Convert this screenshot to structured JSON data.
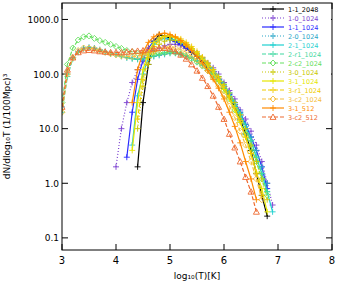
{
  "chart_data": {
    "type": "line",
    "x_label": "log₁₀(T)[K]",
    "y_label": "dN/dlog₁₀T (1/100Mpc)³",
    "log": "y",
    "legend": "top-right",
    "xlim": [
      3,
      8
    ],
    "xticks": [
      3,
      4,
      5,
      6,
      7,
      8
    ],
    "ylim": [
      0.06,
      2000
    ],
    "yticks": [
      0.1,
      {
        "value": 1,
        "label": "1.0"
      },
      {
        "value": 10,
        "label": "10.0"
      },
      {
        "value": 100,
        "label": "100.0"
      },
      {
        "value": 1000,
        "label": "1000.0"
      }
    ],
    "x": [
      3.0,
      3.1,
      3.2,
      3.3,
      3.4,
      3.5,
      3.6,
      3.7,
      3.8,
      3.9,
      4.0,
      4.1,
      4.2,
      4.3,
      4.4,
      4.5,
      4.6,
      4.7,
      4.8,
      4.9,
      5.0,
      5.1,
      5.2,
      5.3,
      5.4,
      5.5,
      5.6,
      5.7,
      5.8,
      5.9,
      6.0,
      6.1,
      6.2,
      6.3,
      6.4,
      6.5,
      6.6,
      6.7,
      6.8,
      6.9,
      7.0
    ],
    "series": [
      {
        "name": "1-1_2048",
        "color": "#000000",
        "line_style": "solid",
        "marker": "plus",
        "values": [
          null,
          null,
          null,
          null,
          null,
          null,
          null,
          null,
          null,
          null,
          null,
          null,
          null,
          null,
          2,
          30,
          150,
          400,
          520,
          500,
          460,
          400,
          350,
          300,
          250,
          210,
          170,
          130,
          100,
          75,
          55,
          38,
          25,
          15,
          8,
          4,
          1.5,
          0.6,
          0.25,
          null,
          null
        ]
      },
      {
        "name": "1-0_1024",
        "color": "#7a3fd0",
        "line_style": "dotted",
        "marker": "plus",
        "values": [
          null,
          null,
          null,
          null,
          null,
          null,
          null,
          null,
          null,
          null,
          2,
          10,
          30,
          70,
          120,
          170,
          230,
          270,
          300,
          330,
          350,
          350,
          330,
          300,
          270,
          240,
          200,
          160,
          130,
          100,
          70,
          50,
          35,
          22,
          15,
          9,
          5,
          2.5,
          1,
          0.4,
          null
        ]
      },
      {
        "name": "1-1_1024",
        "color": "#2b2bff",
        "line_style": "solid",
        "marker": "plus",
        "values": [
          null,
          null,
          null,
          null,
          null,
          null,
          null,
          null,
          null,
          null,
          null,
          null,
          3,
          20,
          80,
          180,
          300,
          400,
          450,
          450,
          430,
          390,
          350,
          300,
          260,
          220,
          180,
          140,
          110,
          80,
          60,
          42,
          30,
          20,
          12,
          7,
          4,
          2,
          0.8,
          null,
          null
        ]
      },
      {
        "name": "2-0_1024",
        "color": "#2aa6c8",
        "line_style": "dotted",
        "marker": "plus",
        "values": [
          25,
          100,
          200,
          260,
          300,
          310,
          300,
          280,
          260,
          240,
          230,
          215,
          200,
          195,
          190,
          195,
          200,
          210,
          220,
          230,
          240,
          240,
          230,
          215,
          200,
          175,
          150,
          125,
          100,
          80,
          60,
          45,
          30,
          20,
          12,
          7,
          4,
          2,
          1,
          null,
          null
        ]
      },
      {
        "name": "2-1_1024",
        "color": "#1fd0d0",
        "line_style": "solid",
        "marker": "plus",
        "values": [
          null,
          null,
          null,
          null,
          null,
          null,
          null,
          null,
          null,
          null,
          null,
          null,
          null,
          5,
          40,
          100,
          200,
          350,
          420,
          450,
          440,
          420,
          380,
          340,
          290,
          240,
          195,
          155,
          120,
          90,
          65,
          45,
          30,
          19,
          11,
          6,
          3,
          1.5,
          0.7,
          0.3,
          null
        ]
      },
      {
        "name": "2-r1_1024",
        "color": "#3fd8a0",
        "line_style": "dashed",
        "marker": "plus",
        "values": [
          20,
          90,
          190,
          250,
          290,
          300,
          290,
          270,
          250,
          235,
          225,
          210,
          200,
          190,
          185,
          190,
          200,
          215,
          230,
          245,
          260,
          255,
          240,
          220,
          195,
          170,
          145,
          120,
          95,
          75,
          55,
          40,
          27,
          17,
          10,
          6,
          3,
          1.5,
          0.7,
          null,
          null
        ]
      },
      {
        "name": "2-c2_1024",
        "color": "#66e060",
        "line_style": "dashed",
        "marker": "diamond",
        "values": [
          30,
          150,
          300,
          420,
          480,
          500,
          450,
          410,
          380,
          350,
          320,
          295,
          270,
          255,
          240,
          235,
          230,
          235,
          240,
          245,
          250,
          245,
          230,
          210,
          190,
          165,
          140,
          115,
          90,
          70,
          50,
          35,
          22,
          14,
          8,
          4.5,
          2.5,
          1.2,
          0.6,
          null,
          null
        ]
      },
      {
        "name": "3-0_1024",
        "color": "#c8c800",
        "line_style": "dotted",
        "marker": "plus",
        "values": [
          null,
          null,
          null,
          null,
          null,
          null,
          null,
          null,
          null,
          null,
          null,
          null,
          null,
          null,
          10,
          60,
          150,
          260,
          350,
          400,
          420,
          410,
          380,
          340,
          290,
          240,
          195,
          155,
          120,
          90,
          65,
          45,
          30,
          18,
          10,
          5,
          2.5,
          1.2,
          0.5,
          null,
          null
        ]
      },
      {
        "name": "3-1_1024",
        "color": "#e6e600",
        "line_style": "solid",
        "marker": "plus",
        "values": [
          null,
          null,
          null,
          null,
          null,
          null,
          null,
          null,
          null,
          null,
          null,
          null,
          null,
          4,
          30,
          120,
          250,
          380,
          460,
          500,
          490,
          460,
          410,
          350,
          290,
          235,
          185,
          140,
          105,
          75,
          52,
          35,
          22,
          13,
          7,
          3.5,
          1.6,
          0.8,
          0.3,
          null,
          null
        ]
      },
      {
        "name": "3-r1_1024",
        "color": "#f0cc00",
        "line_style": "dashed",
        "marker": "plus",
        "values": [
          null,
          null,
          null,
          null,
          null,
          null,
          null,
          null,
          null,
          null,
          null,
          null,
          null,
          null,
          15,
          80,
          200,
          320,
          420,
          480,
          500,
          480,
          440,
          380,
          320,
          260,
          205,
          160,
          120,
          85,
          58,
          38,
          24,
          14,
          7,
          3.5,
          1.5,
          0.6,
          null,
          null,
          null
        ]
      },
      {
        "name": "3-c2_1024",
        "color": "#f5c040",
        "line_style": "dashed",
        "marker": "diamond",
        "values": [
          20,
          100,
          200,
          270,
          300,
          300,
          290,
          270,
          250,
          235,
          225,
          215,
          210,
          210,
          215,
          225,
          240,
          260,
          280,
          300,
          310,
          300,
          280,
          250,
          215,
          180,
          145,
          115,
          85,
          60,
          40,
          26,
          16,
          9,
          5,
          2.5,
          1.2,
          0.5,
          null,
          null,
          null
        ]
      },
      {
        "name": "3-1_512",
        "color": "#ff8a00",
        "line_style": "solid",
        "marker": "plus",
        "values": [
          null,
          null,
          null,
          null,
          null,
          null,
          null,
          null,
          null,
          null,
          null,
          null,
          null,
          30,
          120,
          250,
          380,
          480,
          540,
          560,
          530,
          480,
          410,
          340,
          270,
          210,
          160,
          115,
          80,
          55,
          35,
          20,
          11,
          5.5,
          2.5,
          1.2,
          0.5,
          null,
          null,
          null,
          null
        ]
      },
      {
        "name": "3-c2_512",
        "color": "#ee6a30",
        "line_style": "dashed",
        "marker": "triangle",
        "values": [
          25,
          120,
          200,
          250,
          270,
          275,
          270,
          260,
          255,
          250,
          250,
          250,
          255,
          260,
          265,
          270,
          280,
          290,
          300,
          300,
          290,
          260,
          225,
          190,
          150,
          115,
          85,
          60,
          40,
          25,
          15,
          8,
          4.5,
          2.5,
          1.3,
          0.7,
          0.3,
          null,
          null,
          null,
          null
        ]
      }
    ]
  }
}
